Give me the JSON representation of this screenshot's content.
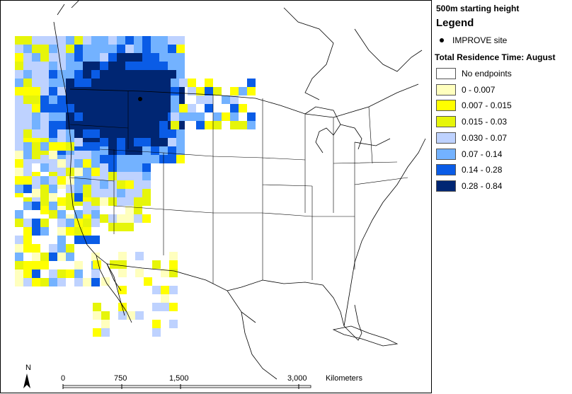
{
  "legend": {
    "starting_height": "500m starting height",
    "title": "Legend",
    "site_label": "IMPROVE site",
    "residence_title": "Total Residence Time: August",
    "classes": [
      {
        "label": "No endpoints",
        "color": "#ffffff"
      },
      {
        "label": "0 - 0.007",
        "color": "#ffffbe"
      },
      {
        "label": "0.007 - 0.015",
        "color": "#ffff00"
      },
      {
        "label": "0.015 - 0.03",
        "color": "#e6f50a"
      },
      {
        "label": "0.030 - 0.07",
        "color": "#bed2ff"
      },
      {
        "label": "0.07 - 0.14",
        "color": "#73b2ff"
      },
      {
        "label": "0.14 - 0.28",
        "color": "#0a5ce6"
      },
      {
        "label": "0.28 - 0.84",
        "color": "#002673"
      }
    ]
  },
  "scale_bar": {
    "ticks": [
      "0",
      "750",
      "1,500",
      "3,000"
    ],
    "unit": "Kilometers"
  },
  "north_arrow": {
    "label": "N"
  }
}
